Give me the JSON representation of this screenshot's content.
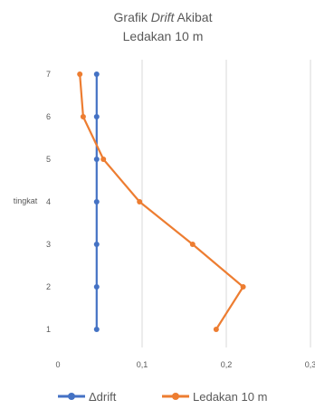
{
  "chart_data": {
    "type": "line",
    "title_parts": [
      "Grafik ",
      "Drift",
      " Akibat"
    ],
    "title_line2": "Ledakan 10 m",
    "ylabel": "tingkat",
    "xlabel": "",
    "y_categories": [
      "1",
      "2",
      "3",
      "4",
      "5",
      "6",
      "7"
    ],
    "x_tick_labels": [
      "0",
      "0,1",
      "0,2",
      "0,3"
    ],
    "xlim": [
      0,
      0.3
    ],
    "grid": "vertical",
    "legend_position": "bottom",
    "series": [
      {
        "name": "Δdrift",
        "color": "#4472C4",
        "x": [
          0.046,
          0.046,
          0.046,
          0.046,
          0.046,
          0.046,
          0.046
        ],
        "y": [
          1,
          2,
          3,
          4,
          5,
          6,
          7
        ]
      },
      {
        "name": "Ledakan 10 m",
        "color": "#ED7D31",
        "x": [
          0.188,
          0.22,
          0.16,
          0.097,
          0.054,
          0.03,
          0.026
        ],
        "y": [
          1,
          2,
          3,
          4,
          5,
          6,
          7
        ]
      }
    ]
  }
}
